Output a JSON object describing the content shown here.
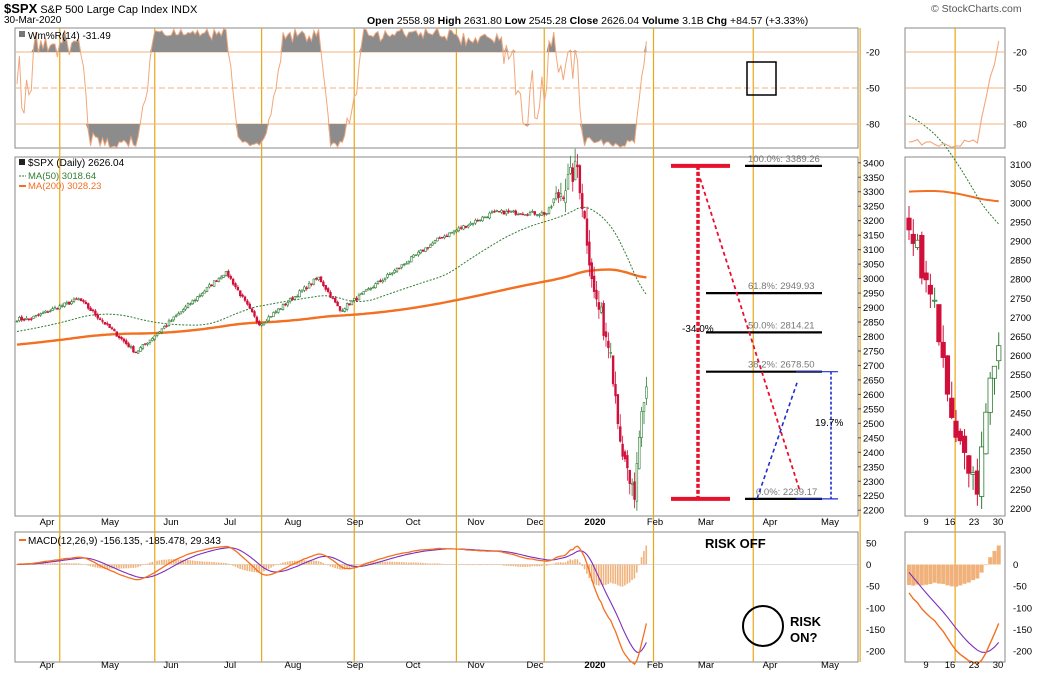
{
  "header": {
    "symbol": "$SPX",
    "name": "S&P 500 Large Cap Index",
    "exchange": "INDX",
    "date": "30-Mar-2020",
    "open_label": "Open",
    "open": "2558.98",
    "high_label": "High",
    "high": "2631.80",
    "low_label": "Low",
    "low": "2545.28",
    "close_label": "Close",
    "close": "2626.04",
    "volume_label": "Volume",
    "volume": "3.1B",
    "chg_label": "Chg",
    "chg": "+84.57 (+3.33%)",
    "watermark": "© StockCharts.com"
  },
  "colors": {
    "up": "#2e7d32",
    "down": "#d0103a",
    "ma200": "#f36f21",
    "ma50": "#2e7d32",
    "willr": "#f2a77b",
    "macd": "#f36f21",
    "signal": "#7b2fbf",
    "hist": "#f0b27a",
    "fib": "#000000",
    "drop": "#e8112d",
    "measure": "#1f2fd1",
    "gridline": "#f3b37c",
    "vline": "#e8a817"
  },
  "chart_data": [
    {
      "panel": "williams",
      "type": "area",
      "legend": "Wm%R(14) -31.49",
      "y_ticks": [
        "-20",
        "-50",
        "-80"
      ],
      "ylim": [
        -100,
        0
      ],
      "reference_levels": [
        -20,
        -50,
        -80
      ]
    },
    {
      "panel": "price",
      "type": "candlestick",
      "legend": [
        "$SPX (Daily) 2626.04",
        "MA(50) 3018.64",
        "MA(200) 3028.23"
      ],
      "y_ticks": [
        "3400",
        "3350",
        "3300",
        "3250",
        "3200",
        "3150",
        "3100",
        "3050",
        "3000",
        "2950",
        "2900",
        "2850",
        "2800",
        "2750",
        "2700",
        "2650",
        "2600",
        "2550",
        "2500",
        "2450",
        "2400",
        "2350",
        "2300",
        "2250",
        "2200"
      ],
      "ylim": [
        2180,
        3420
      ],
      "x_ticks": [
        "Apr",
        "May",
        "Jun",
        "Jul",
        "Aug",
        "Sep",
        "Oct",
        "Nov",
        "Dec",
        "2020",
        "Feb",
        "Mar",
        "Apr",
        "May"
      ],
      "key_points": [
        {
          "date": "2019-04-01",
          "close": 2860
        },
        {
          "date": "2019-05-01",
          "close": 2930
        },
        {
          "date": "2019-06-03",
          "close": 2745
        },
        {
          "date": "2019-07-26",
          "close": 3025
        },
        {
          "date": "2019-08-15",
          "close": 2840
        },
        {
          "date": "2019-09-19",
          "close": 3005
        },
        {
          "date": "2019-10-02",
          "close": 2890
        },
        {
          "date": "2019-11-29",
          "close": 3140
        },
        {
          "date": "2019-12-31",
          "close": 3230
        },
        {
          "date": "2020-01-31",
          "close": 3225
        },
        {
          "date": "2020-02-19",
          "close": 3386
        },
        {
          "date": "2020-02-28",
          "close": 2955
        },
        {
          "date": "2020-03-09",
          "close": 2745
        },
        {
          "date": "2020-03-16",
          "close": 2386
        },
        {
          "date": "2020-03-23",
          "close": 2237
        },
        {
          "date": "2020-03-27",
          "close": 2541
        },
        {
          "date": "2020-03-30",
          "close": 2626
        }
      ],
      "fibonacci": [
        {
          "label": "100.0%: 3389.26",
          "value": 3389.26
        },
        {
          "label": "61.8%: 2949.93",
          "value": 2949.93
        },
        {
          "label": "50.0%: 2814.21",
          "value": 2814.21
        },
        {
          "label": "38.2%: 2678.50",
          "value": 2678.5
        },
        {
          "label": "0.0%: 2239.17",
          "value": 2239.17
        }
      ],
      "annotations": [
        "-34.0%",
        "19.7%"
      ]
    },
    {
      "panel": "macd",
      "type": "line",
      "legend": "MACD(12,26,9) -156.135, -185.478, 29.343",
      "y_ticks": [
        "50",
        "0",
        "-50",
        "-100",
        "-150",
        "-200"
      ],
      "ylim": [
        -225,
        75
      ],
      "x_ticks": [
        "Apr",
        "May",
        "Jun",
        "Jul",
        "Aug",
        "Sep",
        "Oct",
        "Nov",
        "Dec",
        "2020",
        "Feb",
        "Mar",
        "Apr",
        "May"
      ],
      "annotations": [
        "RISK OFF",
        "RISK",
        "ON?"
      ]
    },
    {
      "panel": "zoom-price",
      "type": "candlestick",
      "y_ticks": [
        "3100",
        "3050",
        "3000",
        "2950",
        "2900",
        "2850",
        "2800",
        "2750",
        "2700",
        "2650",
        "2600",
        "2550",
        "2500",
        "2450",
        "2400",
        "2350",
        "2300",
        "2250",
        "2200"
      ],
      "x_ticks": [
        "9",
        "16",
        "23",
        "30"
      ]
    },
    {
      "panel": "zoom-williams",
      "type": "area",
      "y_ticks": [
        "-20",
        "-50",
        "-80"
      ]
    },
    {
      "panel": "zoom-macd",
      "type": "line",
      "y_ticks": [
        "0",
        "-50",
        "-100",
        "-150",
        "-200"
      ],
      "x_ticks": [
        "9",
        "16",
        "23",
        "30"
      ]
    }
  ]
}
